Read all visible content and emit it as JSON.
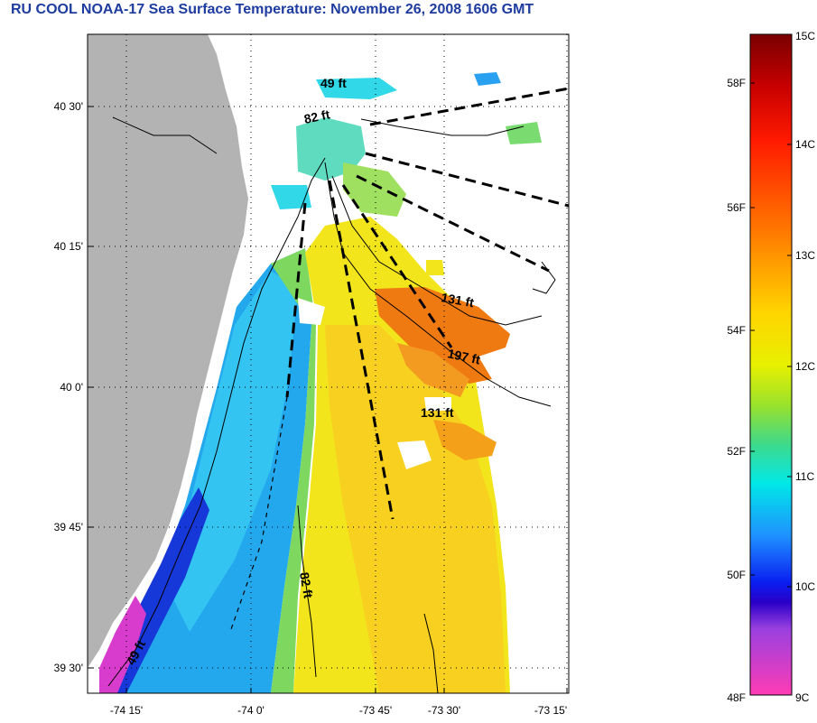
{
  "title": "RU COOL  NOAA-17  Sea Surface Temperature:  November 26, 2008 1606 GMT",
  "map": {
    "lat_ticks": [
      "40 30'",
      "40 15'",
      "40 0'",
      "39 45'",
      "39 30'"
    ],
    "lon_ticks": [
      "-74 15'",
      "-74 0'",
      "-73 45'",
      "-73 30'",
      "-73 15'"
    ],
    "depth_labels": [
      "49 ft",
      "82 ft",
      "131 ft",
      "197 ft",
      "131 ft",
      "82 ft",
      "49 ft"
    ],
    "colors": {
      "land": "#b3b3b3",
      "cloud": "#ffffff",
      "contour": "#000000"
    }
  },
  "colorbar": {
    "celsius": [
      "15C",
      "14C",
      "13C",
      "12C",
      "11C",
      "10C",
      "9C"
    ],
    "fahrenheit": [
      "58F",
      "56F",
      "54F",
      "52F",
      "50F",
      "48F"
    ]
  }
}
